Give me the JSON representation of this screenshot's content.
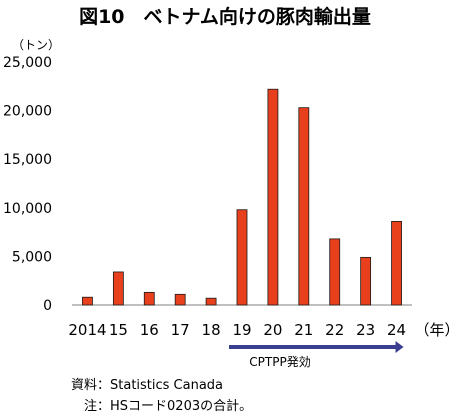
{
  "chart_data": {
    "type": "bar",
    "title": "図10　ベトナム向けの豚肉輸出量",
    "unit_label": "（トン）",
    "x_unit_label": "（年）",
    "categories": [
      "2014",
      "15",
      "16",
      "17",
      "18",
      "19",
      "20",
      "21",
      "22",
      "23",
      "24"
    ],
    "values": [
      800,
      3400,
      1300,
      1100,
      700,
      9800,
      22200,
      20300,
      6800,
      4900,
      8600
    ],
    "ylim": [
      0,
      25000
    ],
    "yticks": [
      0,
      5000,
      10000,
      15000,
      20000,
      25000
    ],
    "ytick_labels": [
      "0",
      "5,000",
      "10,000",
      "15,000",
      "20,000",
      "25,000"
    ],
    "grid": false,
    "legend": "none",
    "bar_color": "#e8401c",
    "bar_edge_color": "#1a1a1a",
    "annotation": {
      "text": "CPTPP発効",
      "from_category": "19",
      "to_category": "24",
      "color": "#3b3f8f"
    }
  },
  "notes": {
    "source": "資料：Statistics Canada",
    "note": "注：HSコード0203の合計。"
  }
}
